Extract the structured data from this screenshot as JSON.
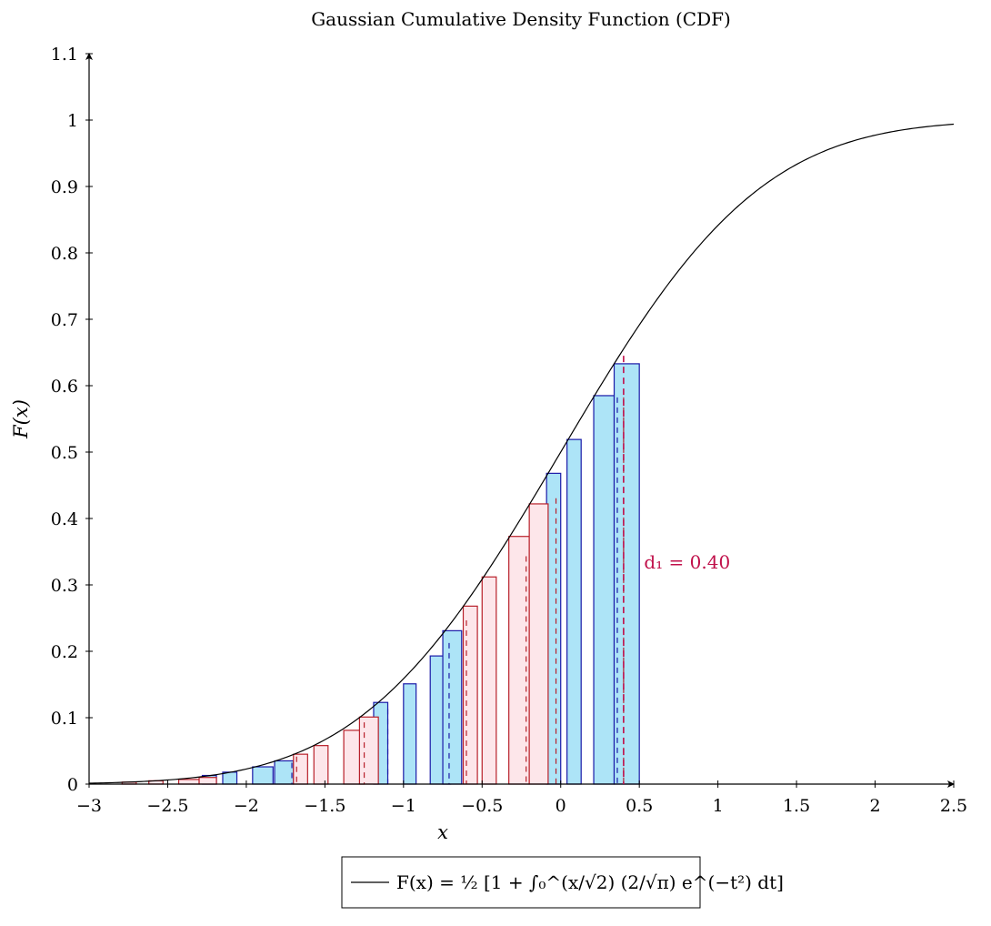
{
  "chart_data": {
    "type": "bar",
    "title": "Gaussian Cumulative Density Function (CDF)",
    "xlabel": "x",
    "ylabel": "F(x)",
    "xlim": [
      -3,
      2.5
    ],
    "ylim": [
      0,
      1.1
    ],
    "xticks": [
      -3,
      -2.5,
      -2,
      -1.5,
      -1,
      -0.5,
      0,
      0.5,
      1,
      1.5,
      2,
      2.5
    ],
    "xtick_labels": [
      "−3",
      "−2.5",
      "−2",
      "−1.5",
      "−1",
      "−0.5",
      "0",
      "0.5",
      "1",
      "1.5",
      "2",
      "2.5"
    ],
    "yticks": [
      0,
      0.1,
      0.2,
      0.3,
      0.4,
      0.5,
      0.6,
      0.7,
      0.8,
      0.9,
      1,
      1.1
    ],
    "ytick_labels": [
      "0",
      "0.1",
      "0.2",
      "0.3",
      "0.4",
      "0.5",
      "0.6",
      "0.7",
      "0.8",
      "0.9",
      "1",
      "1.1"
    ],
    "grid": false,
    "legend_position": "bottom-center",
    "curve": {
      "name": "F(x) = ½ [1 + ∫₀^(x/√2) (2/√π) e^(−t²) dt]",
      "function": "normal_cdf",
      "x_range": [
        -3,
        2.5
      ],
      "color": "#000000"
    },
    "series": [
      {
        "name": "blue bars",
        "color_fill": "#ade4f7",
        "color_edge": "#1a1aa8",
        "bars": [
          {
            "x0": -2.28,
            "x1": -2.19,
            "y": 0.013
          },
          {
            "x0": -2.15,
            "x1": -2.06,
            "y": 0.018
          },
          {
            "x0": -1.96,
            "x1": -1.83,
            "y": 0.026
          },
          {
            "x0": -1.82,
            "x1": -1.7,
            "y": 0.035
          },
          {
            "x0": -1.19,
            "x1": -1.1,
            "y": 0.123
          },
          {
            "x0": -1.0,
            "x1": -0.92,
            "y": 0.151
          },
          {
            "x0": -0.83,
            "x1": -0.7,
            "y": 0.193
          },
          {
            "x0": -0.75,
            "x1": -0.63,
            "y": 0.231
          },
          {
            "x0": -0.09,
            "x1": 0.0,
            "y": 0.468
          },
          {
            "x0": 0.04,
            "x1": 0.13,
            "y": 0.519
          },
          {
            "x0": 0.21,
            "x1": 0.34,
            "y": 0.585
          },
          {
            "x0": 0.34,
            "x1": 0.5,
            "y": 0.633
          }
        ],
        "dashed_markers": [
          -1.71,
          -1.1,
          -0.71,
          0.36
        ]
      },
      {
        "name": "red bars",
        "color_fill": "#fde6ea",
        "color_edge": "#b8202a",
        "bars": [
          {
            "x0": -2.79,
            "x1": -2.7,
            "y": 0.003
          },
          {
            "x0": -2.62,
            "x1": -2.53,
            "y": 0.005
          },
          {
            "x0": -2.43,
            "x1": -2.3,
            "y": 0.007
          },
          {
            "x0": -2.3,
            "x1": -2.19,
            "y": 0.01
          },
          {
            "x0": -1.7,
            "x1": -1.61,
            "y": 0.045
          },
          {
            "x0": -1.57,
            "x1": -1.48,
            "y": 0.058
          },
          {
            "x0": -1.38,
            "x1": -1.25,
            "y": 0.081
          },
          {
            "x0": -1.28,
            "x1": -1.16,
            "y": 0.101
          },
          {
            "x0": -0.62,
            "x1": -0.53,
            "y": 0.268
          },
          {
            "x0": -0.5,
            "x1": -0.41,
            "y": 0.312
          },
          {
            "x0": -0.33,
            "x1": -0.2,
            "y": 0.373
          },
          {
            "x0": -0.2,
            "x1": -0.08,
            "y": 0.422
          }
        ],
        "dashed_markers": [
          -1.68,
          -1.25,
          -0.6,
          -0.22,
          -0.03,
          0.4
        ]
      }
    ],
    "annotations": [
      {
        "text": "d₁ = 0.40",
        "x": 0.53,
        "y": 0.325,
        "color": "#c0104a"
      }
    ],
    "marker_line": {
      "x": 0.4,
      "y_top": 0.645,
      "color": "#c0104a"
    }
  }
}
